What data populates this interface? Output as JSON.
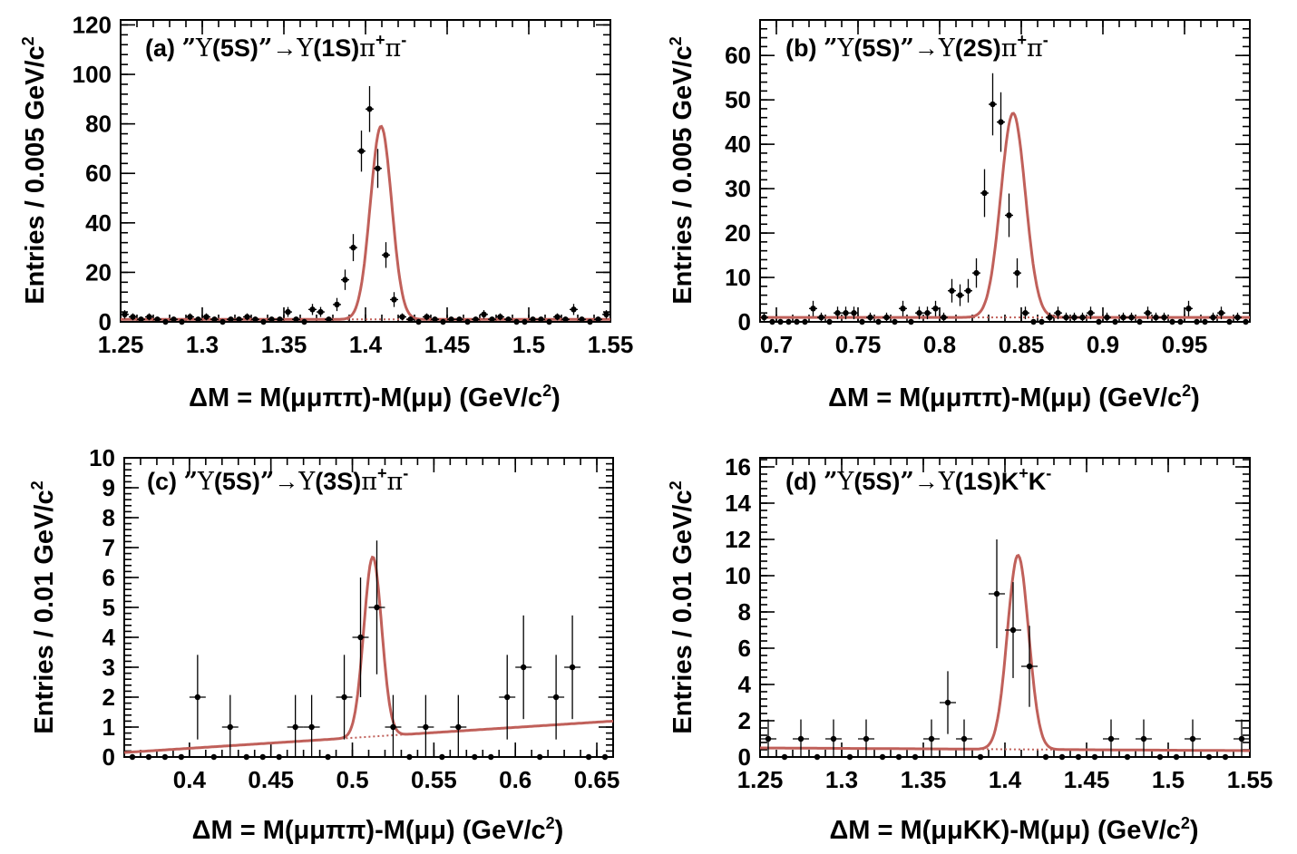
{
  "chart_data": [
    {
      "type": "scatter",
      "panel": "a",
      "title_parts": {
        "tag": "(a) ",
        "q1": "”",
        "ups": "Υ",
        "st1": "(5S)",
        "q2": "”",
        "arrow": "→",
        "ups2": "Υ",
        "st2": "(1S)",
        "fin": "ππ",
        "sup1": "+",
        "sup2": "-"
      },
      "xlabel": "ΔM = M(μμππ)-M(μμ) (GeV/c2)",
      "xlabel_main": "ΔM = M(μμππ)-M(μμ) (GeV/c",
      "xlabel_sup": "2",
      "xlabel_close": ")",
      "ylabel": "Entries / 0.005 GeV/c2",
      "ylabel_main": "Entries / 0.005 GeV/c",
      "ylabel_sup": "2",
      "xlim": [
        1.25,
        1.55
      ],
      "ylim": [
        0,
        122
      ],
      "xticks": [
        1.25,
        1.3,
        1.35,
        1.4,
        1.45,
        1.5,
        1.55
      ],
      "xtick_labels": [
        "1.25",
        "1.3",
        "1.35",
        "1.4",
        "1.45",
        "1.5",
        "1.55"
      ],
      "yticks": [
        0,
        20,
        40,
        60,
        80,
        100,
        120
      ],
      "ytick_labels": [
        "0",
        "20",
        "40",
        "60",
        "80",
        "100",
        "120"
      ],
      "bin_width": 0.005,
      "x": [
        1.2525,
        1.2575,
        1.2625,
        1.2675,
        1.2725,
        1.2775,
        1.2825,
        1.2875,
        1.2925,
        1.2975,
        1.3025,
        1.3075,
        1.3125,
        1.3175,
        1.3225,
        1.3275,
        1.3325,
        1.3375,
        1.3425,
        1.3475,
        1.3525,
        1.3575,
        1.3625,
        1.3675,
        1.3725,
        1.3775,
        1.3825,
        1.3875,
        1.3925,
        1.3975,
        1.4025,
        1.4075,
        1.4125,
        1.4175,
        1.4225,
        1.4275,
        1.4325,
        1.4375,
        1.4425,
        1.4475,
        1.4525,
        1.4575,
        1.4625,
        1.4675,
        1.4725,
        1.4775,
        1.4825,
        1.4875,
        1.4925,
        1.4975,
        1.5025,
        1.5075,
        1.5125,
        1.5175,
        1.5225,
        1.5275,
        1.5325,
        1.5375,
        1.5425,
        1.5475
      ],
      "y": [
        3,
        2,
        1,
        2,
        1,
        0,
        1,
        0,
        2,
        1,
        2,
        1,
        0,
        1,
        1,
        2,
        1,
        0,
        1,
        1,
        4,
        1,
        0,
        5,
        4,
        1,
        7,
        17,
        30,
        69,
        86,
        62,
        27,
        9,
        2,
        1,
        0,
        2,
        1,
        0,
        1,
        1,
        0,
        1,
        3,
        1,
        2,
        1,
        0,
        0,
        1,
        1,
        0,
        2,
        1,
        5,
        1,
        0,
        1,
        3
      ],
      "peak": {
        "mu": 1.4095,
        "sigma": 0.0065,
        "amp": 78
      },
      "background": 1.0,
      "background_slope": 0
    },
    {
      "type": "scatter",
      "panel": "b",
      "title_parts": {
        "tag": "(b) ",
        "q1": "”",
        "ups": "Υ",
        "st1": "(5S)",
        "q2": "”",
        "arrow": "→",
        "ups2": "Υ",
        "st2": "(2S)",
        "fin": "ππ",
        "sup1": "+",
        "sup2": "-"
      },
      "xlabel": "ΔM = M(μμππ)-M(μμ) (GeV/c2)",
      "xlabel_main": "ΔM = M(μμππ)-M(μμ) (GeV/c",
      "xlabel_sup": "2",
      "xlabel_close": ")",
      "ylabel": "Entries / 0.005 GeV/c2",
      "ylabel_main": "Entries / 0.005 GeV/c",
      "ylabel_sup": "2",
      "xlim": [
        0.69,
        0.99
      ],
      "ylim": [
        0,
        68
      ],
      "xticks": [
        0.7,
        0.75,
        0.8,
        0.85,
        0.9,
        0.95
      ],
      "xtick_labels": [
        "0.7",
        "0.75",
        "0.8",
        "0.85",
        "0.9",
        "0.95"
      ],
      "yticks": [
        0,
        10,
        20,
        30,
        40,
        50,
        60
      ],
      "ytick_labels": [
        "0",
        "10",
        "20",
        "30",
        "40",
        "50",
        "60"
      ],
      "bin_width": 0.005,
      "x": [
        0.6925,
        0.6975,
        0.7025,
        0.7075,
        0.7125,
        0.7175,
        0.7225,
        0.7275,
        0.7325,
        0.7375,
        0.7425,
        0.7475,
        0.7525,
        0.7575,
        0.7625,
        0.7675,
        0.7725,
        0.7775,
        0.7825,
        0.7875,
        0.7925,
        0.7975,
        0.8025,
        0.8075,
        0.8125,
        0.8175,
        0.8225,
        0.8275,
        0.8325,
        0.8375,
        0.8425,
        0.8475,
        0.8525,
        0.8575,
        0.8625,
        0.8675,
        0.8725,
        0.8775,
        0.8825,
        0.8875,
        0.8925,
        0.8975,
        0.9025,
        0.9075,
        0.9125,
        0.9175,
        0.9225,
        0.9275,
        0.9325,
        0.9375,
        0.9425,
        0.9475,
        0.9525,
        0.9575,
        0.9625,
        0.9675,
        0.9725,
        0.9775,
        0.9825,
        0.9875
      ],
      "y": [
        1,
        0,
        0,
        0,
        0,
        0,
        3,
        1,
        0,
        2,
        2,
        2,
        0,
        1,
        0,
        1,
        0,
        3,
        0,
        2,
        2,
        3,
        1,
        7,
        6,
        7,
        11,
        29,
        49,
        45,
        24,
        11,
        2,
        0,
        0,
        1,
        2,
        1,
        1,
        1,
        2,
        0,
        1,
        0,
        1,
        1,
        0,
        2,
        1,
        1,
        0,
        0,
        3,
        0,
        0,
        1,
        2,
        0,
        1,
        0
      ],
      "peak": {
        "mu": 0.845,
        "sigma": 0.0075,
        "amp": 46
      },
      "background": 1.0,
      "background_slope": 0
    },
    {
      "type": "scatter",
      "panel": "c",
      "title_parts": {
        "tag": "(c) ",
        "q1": "”",
        "ups": "Υ",
        "st1": "(5S)",
        "q2": "”",
        "arrow": "→",
        "ups2": "Υ",
        "st2": "(3S)",
        "fin": "ππ",
        "sup1": "+",
        "sup2": "-"
      },
      "xlabel": "ΔM = M(μμππ)-M(μμ) (GeV/c2)",
      "xlabel_main": "ΔM = M(μμππ)-M(μμ) (GeV/c",
      "xlabel_sup": "2",
      "xlabel_close": ")",
      "ylabel": "Entries / 0.01 GeV/c2",
      "ylabel_main": "Entries / 0.01 GeV/c",
      "ylabel_sup": "2",
      "xlim": [
        0.36,
        0.66
      ],
      "ylim": [
        0,
        10
      ],
      "xticks": [
        0.4,
        0.45,
        0.5,
        0.55,
        0.6,
        0.65
      ],
      "xtick_labels": [
        "0.4",
        "0.45",
        "0.5",
        "0.55",
        "0.6",
        "0.65"
      ],
      "yticks": [
        0,
        1,
        2,
        3,
        4,
        5,
        6,
        7,
        8,
        9,
        10
      ],
      "ytick_labels": [
        "0",
        "1",
        "2",
        "3",
        "4",
        "5",
        "6",
        "7",
        "8",
        "9",
        "10"
      ],
      "bin_width": 0.01,
      "x": [
        0.365,
        0.375,
        0.385,
        0.395,
        0.405,
        0.415,
        0.425,
        0.435,
        0.445,
        0.455,
        0.465,
        0.475,
        0.485,
        0.495,
        0.505,
        0.515,
        0.525,
        0.535,
        0.545,
        0.555,
        0.565,
        0.575,
        0.585,
        0.595,
        0.605,
        0.615,
        0.625,
        0.635,
        0.645,
        0.655
      ],
      "y": [
        0,
        0,
        0,
        0,
        2,
        0,
        1,
        0,
        0,
        0,
        1,
        1,
        0,
        2,
        4,
        5,
        1,
        0,
        1,
        0,
        1,
        0,
        0,
        2,
        3,
        0,
        2,
        3,
        0,
        0
      ],
      "peak": {
        "mu": 0.5125,
        "sigma": 0.0055,
        "amp": 6.0
      },
      "background": 0.15,
      "background_slope": 3.5
    },
    {
      "type": "scatter",
      "panel": "d",
      "title_parts": {
        "tag": "(d) ",
        "q1": "”",
        "ups": "Υ",
        "st1": "(5S)",
        "q2": "”",
        "arrow": "→",
        "ups2": "Υ",
        "st2": "(1S)",
        "fin": "KK",
        "sup1": "+",
        "sup2": "-"
      },
      "xlabel": "ΔM = M(μμKK)-M(μμ) (GeV/c2)",
      "xlabel_main": "ΔM = M(μμKK)-M(μμ) (GeV/c",
      "xlabel_sup": "2",
      "xlabel_close": ")",
      "ylabel": "Entries / 0.01 GeV/c2",
      "ylabel_main": "Entries / 0.01 GeV/c",
      "ylabel_sup": "2",
      "xlim": [
        1.25,
        1.55
      ],
      "ylim": [
        0,
        16.5
      ],
      "xticks": [
        1.25,
        1.3,
        1.35,
        1.4,
        1.45,
        1.5,
        1.55
      ],
      "xtick_labels": [
        "1.25",
        "1.3",
        "1.35",
        "1.4",
        "1.45",
        "1.5",
        "1.55"
      ],
      "yticks": [
        0,
        2,
        4,
        6,
        8,
        10,
        12,
        14,
        16
      ],
      "ytick_labels": [
        "0",
        "2",
        "4",
        "6",
        "8",
        "10",
        "12",
        "14",
        "16"
      ],
      "bin_width": 0.01,
      "x": [
        1.255,
        1.265,
        1.275,
        1.285,
        1.295,
        1.305,
        1.315,
        1.325,
        1.335,
        1.345,
        1.355,
        1.365,
        1.375,
        1.385,
        1.395,
        1.405,
        1.415,
        1.425,
        1.435,
        1.445,
        1.455,
        1.465,
        1.475,
        1.485,
        1.495,
        1.505,
        1.515,
        1.525,
        1.535,
        1.545
      ],
      "y": [
        1,
        0,
        1,
        0,
        1,
        0,
        1,
        0,
        0,
        0,
        1,
        3,
        1,
        0,
        9,
        7,
        5,
        0,
        0,
        0,
        0,
        1,
        0,
        1,
        0,
        0,
        1,
        0,
        0,
        1
      ],
      "peak": {
        "mu": 1.408,
        "sigma": 0.0065,
        "amp": 10.7
      },
      "background": 0.5,
      "background_slope": -0.5
    }
  ]
}
